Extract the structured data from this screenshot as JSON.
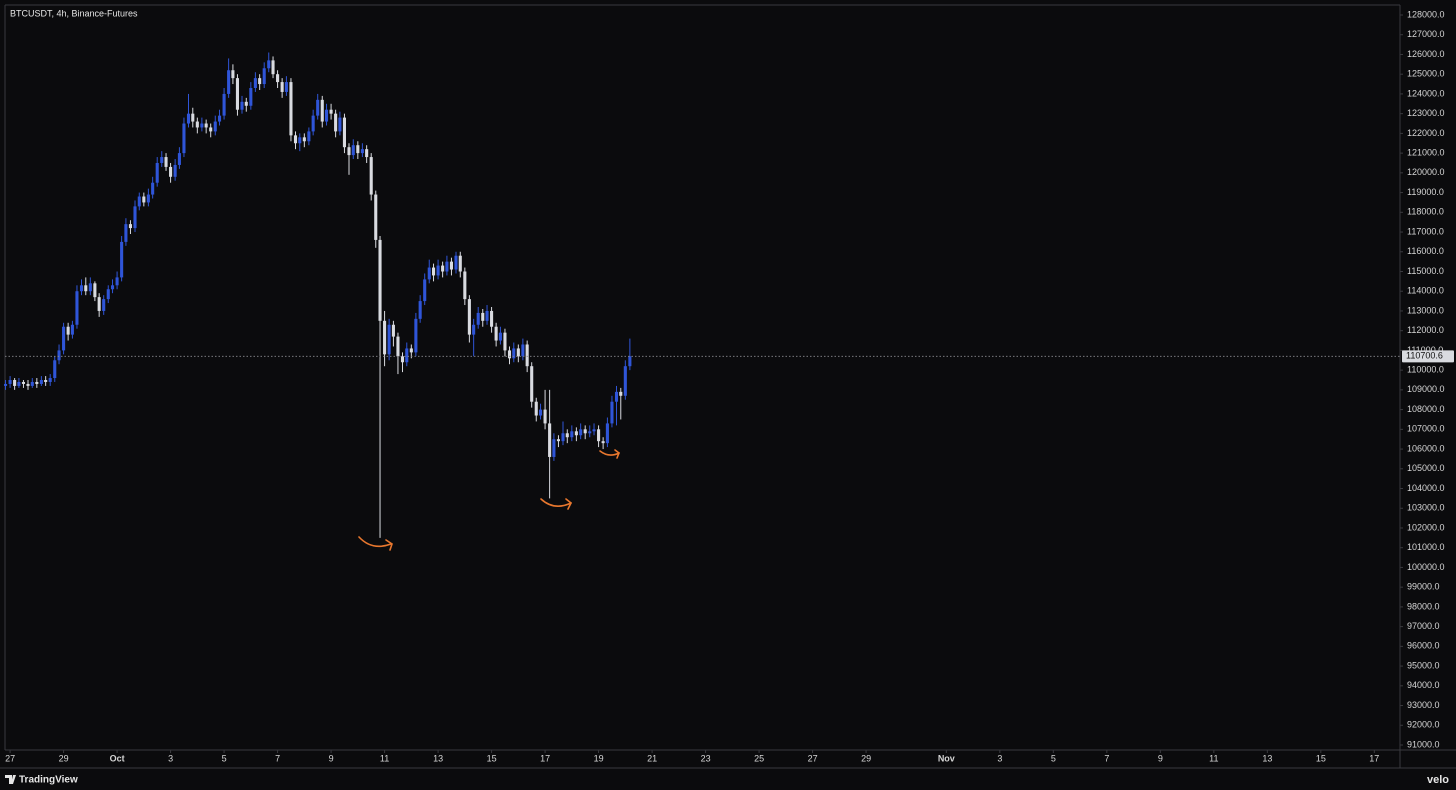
{
  "chart_data": {
    "type": "candlestick",
    "title": "BTCUSDT, 4h, Binance-Futures",
    "up_color": "#2f55d8",
    "down_color": "#d9dbe0",
    "x": [
      -0.17,
      0,
      0.17,
      0.33,
      0.5,
      0.67,
      0.83,
      1,
      1.17,
      1.33,
      1.5,
      1.67,
      1.83,
      2,
      2.17,
      2.33,
      2.5,
      2.67,
      2.83,
      3,
      3.17,
      3.33,
      3.5,
      3.67,
      3.83,
      4,
      4.17,
      4.33,
      4.5,
      4.67,
      4.83,
      5,
      5.17,
      5.33,
      5.5,
      5.67,
      5.83,
      6,
      6.17,
      6.33,
      6.5,
      6.67,
      6.83,
      7,
      7.17,
      7.33,
      7.5,
      7.67,
      7.83,
      8,
      8.17,
      8.33,
      8.5,
      8.67,
      8.83,
      9,
      9.17,
      9.33,
      9.5,
      9.67,
      9.83,
      10,
      10.17,
      10.33,
      10.5,
      10.67,
      10.83,
      11,
      11.17,
      11.33,
      11.5,
      11.67,
      11.83,
      12,
      12.17,
      12.33,
      12.5,
      12.67,
      12.83,
      13,
      13.17,
      13.33,
      13.5,
      13.67,
      13.83,
      14,
      14.17,
      14.33,
      14.5,
      14.67,
      14.83,
      15,
      15.17,
      15.33,
      15.5,
      15.67,
      15.83,
      16,
      16.17,
      16.33,
      16.5,
      16.67,
      16.83,
      17,
      17.17,
      17.33,
      17.5,
      17.67,
      17.83,
      18,
      18.17,
      18.33,
      18.5,
      18.67,
      18.83,
      19,
      19.17,
      19.33,
      19.5,
      19.67,
      19.83,
      20,
      20.17,
      20.33,
      20.5,
      20.67,
      20.83,
      21,
      21.17,
      21.33,
      21.5,
      21.67,
      21.83,
      22,
      22.17,
      22.33,
      22.5,
      22.67,
      22.83,
      23,
      23.17
    ],
    "open": [
      109200,
      109300,
      109500,
      109200,
      109400,
      109300,
      109200,
      109400,
      109300,
      109500,
      109400,
      109600,
      110500,
      111000,
      112200,
      111800,
      112300,
      114000,
      114300,
      114000,
      114400,
      113700,
      113000,
      113600,
      114100,
      114300,
      114700,
      116500,
      117400,
      117200,
      118300,
      118800,
      118500,
      118900,
      119500,
      120500,
      120800,
      120300,
      119800,
      120400,
      121000,
      122500,
      123000,
      122600,
      122300,
      122500,
      122300,
      122100,
      122600,
      122900,
      124000,
      125200,
      124800,
      123200,
      123600,
      123400,
      124300,
      124800,
      124500,
      125300,
      125700,
      125000,
      124600,
      124100,
      124600,
      121900,
      121500,
      121800,
      121600,
      122100,
      122900,
      123700,
      122600,
      123200,
      123000,
      122100,
      122800,
      121300,
      120900,
      121400,
      121000,
      121200,
      120800,
      118900,
      116600,
      112500,
      110800,
      112300,
      111700,
      110700,
      110400,
      111100,
      110900,
      112600,
      113500,
      114600,
      115200,
      114800,
      115300,
      115000,
      115500,
      115100,
      115800,
      115000,
      113600,
      111800,
      112300,
      112900,
      112500,
      113000,
      112200,
      111500,
      111900,
      111000,
      110600,
      111100,
      110700,
      111300,
      110200,
      108400,
      107700,
      108000,
      107300,
      105600,
      106500,
      106400,
      106800,
      106600,
      106900,
      106700,
      107000,
      106800,
      106900,
      107000,
      106400,
      106300,
      107300,
      108400,
      108900,
      108700,
      110200
    ],
    "high": [
      109500,
      109700,
      109600,
      109600,
      109500,
      109500,
      109600,
      109600,
      109700,
      109700,
      109800,
      110700,
      111300,
      112400,
      112400,
      112500,
      114300,
      114600,
      114700,
      114700,
      114500,
      113900,
      113800,
      114300,
      114600,
      115000,
      116800,
      117700,
      117600,
      118600,
      119000,
      119000,
      119200,
      119800,
      120800,
      121100,
      121000,
      120500,
      120700,
      121300,
      122800,
      124000,
      123300,
      122800,
      122800,
      122700,
      122500,
      122900,
      123200,
      124300,
      125800,
      125500,
      125000,
      123900,
      123800,
      124600,
      125100,
      125000,
      125600,
      126100,
      125900,
      125200,
      124800,
      124900,
      124800,
      122100,
      122000,
      122000,
      122300,
      123200,
      124000,
      123900,
      123500,
      123500,
      123200,
      123100,
      123000,
      121500,
      121700,
      121600,
      121500,
      121400,
      121000,
      119100,
      116800,
      113000,
      112600,
      112500,
      111900,
      110900,
      111400,
      111300,
      112900,
      113800,
      114900,
      115600,
      115400,
      115600,
      115500,
      115800,
      115700,
      116000,
      116000,
      115200,
      113800,
      112600,
      113200,
      113100,
      113300,
      113200,
      112400,
      112200,
      112100,
      111200,
      111400,
      111300,
      111600,
      111500,
      110400,
      108600,
      108300,
      109000,
      109000,
      106800,
      106700,
      107400,
      107000,
      107200,
      107100,
      107300,
      107200,
      107200,
      107300,
      107200,
      106600,
      107600,
      108700,
      109200,
      109100,
      110500,
      111600
    ],
    "low": [
      109000,
      109100,
      109000,
      109100,
      109100,
      109000,
      109100,
      109100,
      109200,
      109200,
      109200,
      109400,
      110300,
      110800,
      111500,
      111600,
      112100,
      113800,
      113800,
      113800,
      113500,
      112700,
      112800,
      113400,
      113900,
      114100,
      114500,
      116300,
      116900,
      117000,
      118100,
      118300,
      118300,
      118700,
      119300,
      120300,
      120100,
      119500,
      119600,
      120200,
      120800,
      122300,
      122300,
      122000,
      122100,
      122000,
      121800,
      121900,
      122400,
      122700,
      123800,
      124500,
      122900,
      123000,
      123100,
      123200,
      124100,
      124200,
      124300,
      125100,
      124800,
      124300,
      123800,
      123900,
      121600,
      121200,
      121100,
      121300,
      121400,
      121900,
      122700,
      122300,
      122400,
      122700,
      121800,
      121900,
      121000,
      119900,
      120700,
      120700,
      120800,
      120500,
      118600,
      116200,
      101500,
      110200,
      110500,
      111200,
      109800,
      109900,
      110200,
      110600,
      110700,
      112400,
      113300,
      114400,
      114500,
      114600,
      114700,
      114800,
      114800,
      114900,
      114700,
      113300,
      111400,
      110700,
      112100,
      112200,
      112300,
      111900,
      111200,
      111300,
      110700,
      110300,
      110400,
      110400,
      110500,
      109900,
      108100,
      107400,
      107500,
      107000,
      103500,
      105400,
      106100,
      106200,
      106300,
      106400,
      106400,
      106500,
      106500,
      106600,
      106700,
      106100,
      106000,
      106100,
      107100,
      107200,
      107500,
      108500,
      110000
    ],
    "close": [
      109300,
      109500,
      109200,
      109400,
      109300,
      109200,
      109400,
      109300,
      109500,
      109400,
      109600,
      110500,
      111000,
      112200,
      111800,
      112300,
      114000,
      114300,
      114000,
      114400,
      113700,
      113000,
      113600,
      114100,
      114300,
      114700,
      116500,
      117400,
      117200,
      118300,
      118800,
      118500,
      118900,
      119500,
      120500,
      120800,
      120300,
      119800,
      120400,
      121000,
      122500,
      123000,
      122600,
      122300,
      122500,
      122300,
      122100,
      122600,
      122900,
      124000,
      125200,
      124800,
      123200,
      123600,
      123400,
      124300,
      124800,
      124500,
      125300,
      125700,
      125000,
      124600,
      124100,
      124600,
      121900,
      121500,
      121800,
      121600,
      122100,
      122900,
      123700,
      122600,
      123200,
      123000,
      122100,
      122800,
      121300,
      120900,
      121400,
      121000,
      121200,
      120800,
      118900,
      116600,
      112500,
      110800,
      112300,
      111700,
      110700,
      110400,
      111100,
      110900,
      112600,
      113500,
      114600,
      115200,
      114800,
      115300,
      115000,
      115500,
      115100,
      115800,
      115000,
      113600,
      111800,
      112300,
      112900,
      112500,
      113000,
      112200,
      111500,
      111900,
      111000,
      110600,
      111100,
      110700,
      111300,
      110200,
      108400,
      107700,
      108000,
      107300,
      105600,
      106500,
      106400,
      106800,
      106600,
      106900,
      106700,
      107000,
      106800,
      106900,
      107000,
      106400,
      106300,
      107300,
      108400,
      108900,
      108700,
      110200,
      110700.6
    ],
    "xlim": [
      -0.19,
      51.96
    ],
    "xticks": [
      {
        "value": 0,
        "label": "27"
      },
      {
        "value": 2,
        "label": "29"
      },
      {
        "value": 4,
        "label": "Oct"
      },
      {
        "value": 6,
        "label": "3"
      },
      {
        "value": 8,
        "label": "5"
      },
      {
        "value": 10,
        "label": "7"
      },
      {
        "value": 12,
        "label": "9"
      },
      {
        "value": 14,
        "label": "11"
      },
      {
        "value": 16,
        "label": "13"
      },
      {
        "value": 18,
        "label": "15"
      },
      {
        "value": 20,
        "label": "17"
      },
      {
        "value": 22,
        "label": "19"
      },
      {
        "value": 24,
        "label": "21"
      },
      {
        "value": 26,
        "label": "23"
      },
      {
        "value": 28,
        "label": "25"
      },
      {
        "value": 30,
        "label": "27"
      },
      {
        "value": 32,
        "label": "29"
      },
      {
        "value": 35,
        "label": "Nov"
      },
      {
        "value": 37,
        "label": "3"
      },
      {
        "value": 39,
        "label": "5"
      },
      {
        "value": 41,
        "label": "7"
      },
      {
        "value": 43,
        "label": "9"
      },
      {
        "value": 45,
        "label": "11"
      },
      {
        "value": 47,
        "label": "13"
      },
      {
        "value": 49,
        "label": "15"
      },
      {
        "value": 51,
        "label": "17"
      }
    ],
    "ylim": [
      90747,
      128507
    ],
    "yticks": [
      {
        "value": 91000,
        "label": "91000.0"
      },
      {
        "value": 92000,
        "label": "92000.0"
      },
      {
        "value": 93000,
        "label": "93000.0"
      },
      {
        "value": 94000,
        "label": "94000.0"
      },
      {
        "value": 95000,
        "label": "95000.0"
      },
      {
        "value": 96000,
        "label": "96000.0"
      },
      {
        "value": 97000,
        "label": "97000.0"
      },
      {
        "value": 98000,
        "label": "98000.0"
      },
      {
        "value": 99000,
        "label": "99000.0"
      },
      {
        "value": 100000,
        "label": "100000.0"
      },
      {
        "value": 101000,
        "label": "101000.0"
      },
      {
        "value": 102000,
        "label": "102000.0"
      },
      {
        "value": 103000,
        "label": "103000.0"
      },
      {
        "value": 104000,
        "label": "104000.0"
      },
      {
        "value": 105000,
        "label": "105000.0"
      },
      {
        "value": 106000,
        "label": "106000.0"
      },
      {
        "value": 107000,
        "label": "107000.0"
      },
      {
        "value": 108000,
        "label": "108000.0"
      },
      {
        "value": 109000,
        "label": "109000.0"
      },
      {
        "value": 110000,
        "label": "110000.0"
      },
      {
        "value": 111000,
        "label": "111000.0"
      },
      {
        "value": 112000,
        "label": "112000.0"
      },
      {
        "value": 113000,
        "label": "113000.0"
      },
      {
        "value": 114000,
        "label": "114000.0"
      },
      {
        "value": 115000,
        "label": "115000.0"
      },
      {
        "value": 116000,
        "label": "116000.0"
      },
      {
        "value": 117000,
        "label": "117000.0"
      },
      {
        "value": 118000,
        "label": "118000.0"
      },
      {
        "value": 119000,
        "label": "119000.0"
      },
      {
        "value": 120000,
        "label": "120000.0"
      },
      {
        "value": 121000,
        "label": "121000.0"
      },
      {
        "value": 122000,
        "label": "122000.0"
      },
      {
        "value": 123000,
        "label": "123000.0"
      },
      {
        "value": 124000,
        "label": "124000.0"
      },
      {
        "value": 125000,
        "label": "125000.0"
      },
      {
        "value": 126000,
        "label": "126000.0"
      },
      {
        "value": 127000,
        "label": "127000.0"
      },
      {
        "value": 128000,
        "label": "128000.0"
      }
    ],
    "grid": false
  },
  "branding": {
    "platform": "TradingView",
    "source": "velo"
  }
}
